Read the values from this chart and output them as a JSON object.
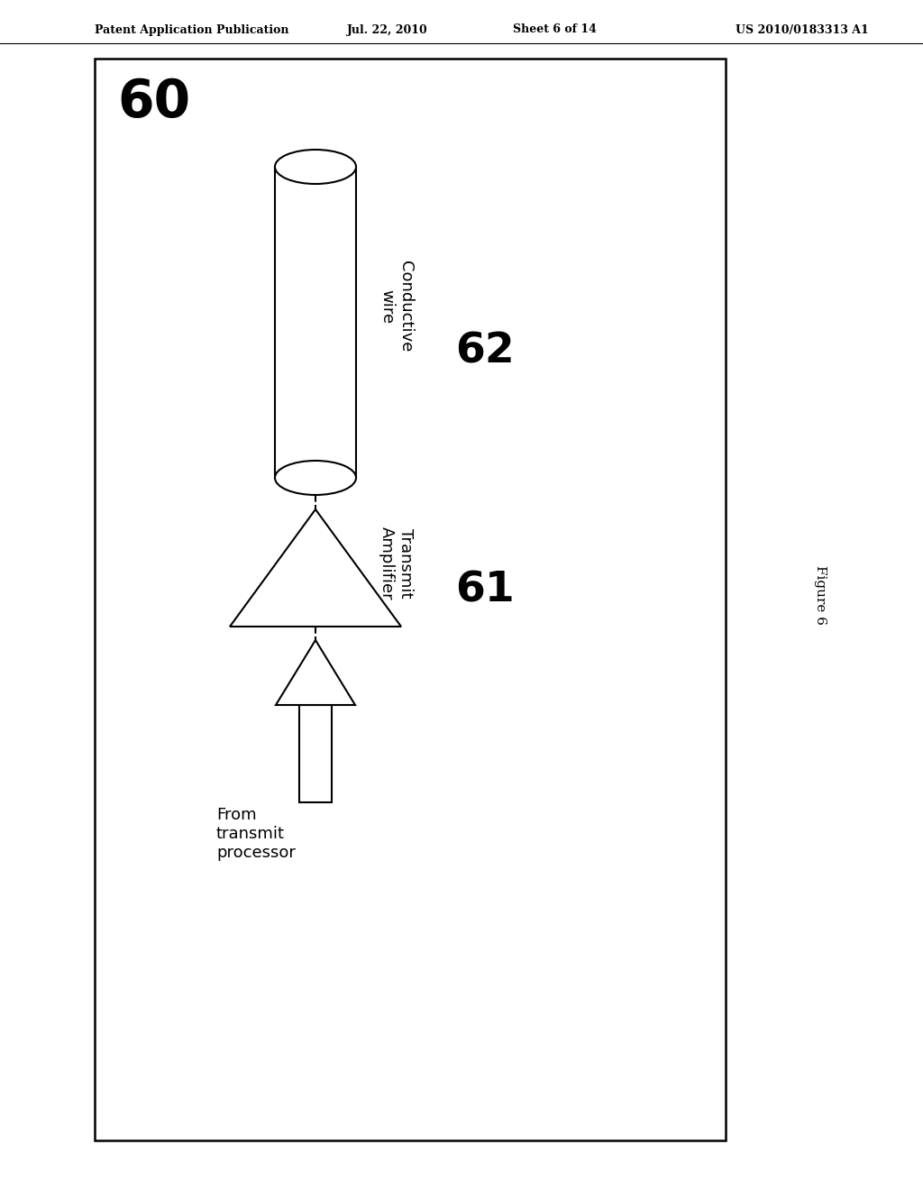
{
  "bg_color": "#ffffff",
  "header_text": "Patent Application Publication",
  "header_date": "Jul. 22, 2010",
  "header_sheet": "Sheet 6 of 14",
  "header_patent": "US 2010/0183313 A1",
  "figure_label": "Figure 6",
  "diagram_label": "60",
  "wire_label": "Conductive\nwire",
  "wire_num": "62",
  "amp_label": "Transmit\nAmplifier",
  "amp_num": "61",
  "source_label": "From\ntransmit\nprocessor",
  "line_color": "#000000",
  "line_width": 1.5
}
